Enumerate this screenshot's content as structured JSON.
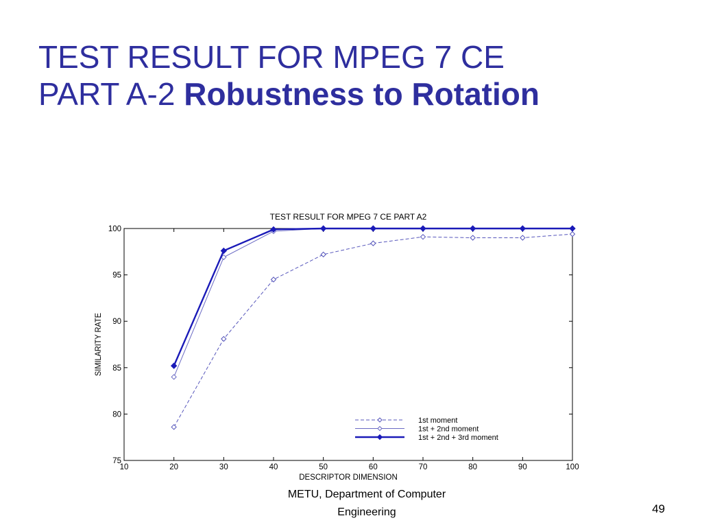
{
  "slide": {
    "title_line1": "TEST RESULT FOR MPEG 7 CE",
    "title_line2_plain": "PART A-2 ",
    "title_line2_bold": "Robustness to Rotation"
  },
  "chart_data": {
    "type": "line",
    "title": "TEST RESULT FOR MPEG 7 CE PART A2",
    "xlabel": "DESCRIPTOR DIMENSION",
    "ylabel": "SIMILARITY RATE",
    "xlim": [
      10,
      100
    ],
    "ylim": [
      75,
      100
    ],
    "xticks": [
      10,
      20,
      30,
      40,
      50,
      60,
      70,
      80,
      90,
      100
    ],
    "yticks": [
      75,
      80,
      85,
      90,
      95,
      100
    ],
    "grid": false,
    "legend_position": "bottom-right",
    "x": [
      20,
      30,
      40,
      50,
      60,
      70,
      80,
      90,
      100
    ],
    "series": [
      {
        "name": "1st moment",
        "values": [
          78.6,
          88.1,
          94.5,
          97.2,
          98.4,
          99.1,
          99.0,
          99.0,
          99.4
        ],
        "color": "#5555bb",
        "line_style": "dashed",
        "marker": "open-diamond"
      },
      {
        "name": "1st + 2nd moment",
        "values": [
          84.0,
          96.9,
          99.7,
          100,
          100,
          100,
          100,
          100,
          100
        ],
        "color": "#6a6ac4",
        "line_style": "solid",
        "marker": "open-diamond"
      },
      {
        "name": "1st + 2nd + 3rd moment",
        "values": [
          85.2,
          97.6,
          99.9,
          100,
          100,
          100,
          100,
          100,
          100
        ],
        "color": "#1a1ab8",
        "line_style": "solid-bold",
        "marker": "filled-diamond"
      }
    ]
  },
  "footer": {
    "line1": "METU, Department of Computer",
    "line2": "Engineering",
    "page_number": "49"
  }
}
